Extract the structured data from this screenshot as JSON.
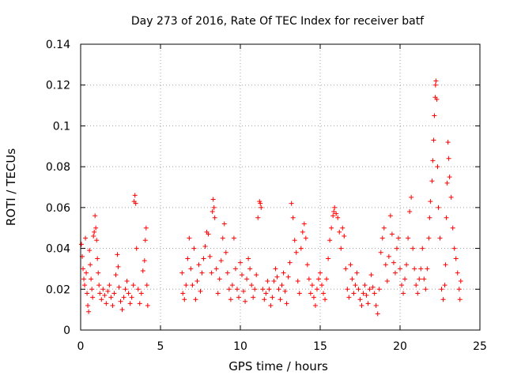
{
  "chart_data": {
    "type": "scatter",
    "title": "Day 273 of 2016, Rate Of TEC Index for receiver batf",
    "xlabel": "GPS time / hours",
    "ylabel": "ROTI / TECUs",
    "xlim": [
      0,
      25
    ],
    "ylim": [
      0,
      0.14
    ],
    "xticks": [
      0,
      5,
      10,
      15,
      20,
      25
    ],
    "xtick_labels": [
      "0",
      "5",
      "10",
      "15",
      "20",
      "25"
    ],
    "yticks": [
      0,
      0.02,
      0.04,
      0.06,
      0.08,
      0.1,
      0.12,
      0.14
    ],
    "ytick_labels": [
      "0",
      "0.02",
      "0.04",
      "0.06",
      "0.08",
      "0.1",
      "0.12",
      "0.14"
    ],
    "grid": true,
    "marker": "+",
    "color": "#ff0000",
    "series": [
      {
        "name": "ROTI",
        "points": [
          [
            0.05,
            0.042
          ],
          [
            0.1,
            0.036
          ],
          [
            0.15,
            0.03
          ],
          [
            0.2,
            0.025
          ],
          [
            0.25,
            0.022
          ],
          [
            0.3,
            0.045
          ],
          [
            0.35,
            0.028
          ],
          [
            0.4,
            0.018
          ],
          [
            0.45,
            0.012
          ],
          [
            0.5,
            0.009
          ],
          [
            0.55,
            0.039
          ],
          [
            0.6,
            0.032
          ],
          [
            0.65,
            0.025
          ],
          [
            0.7,
            0.02
          ],
          [
            0.75,
            0.016
          ],
          [
            0.8,
            0.046
          ],
          [
            0.85,
            0.048
          ],
          [
            0.9,
            0.056
          ],
          [
            0.95,
            0.05
          ],
          [
            1.0,
            0.044
          ],
          [
            1.05,
            0.035
          ],
          [
            1.1,
            0.028
          ],
          [
            1.15,
            0.022
          ],
          [
            1.2,
            0.018
          ],
          [
            1.3,
            0.015
          ],
          [
            1.4,
            0.02
          ],
          [
            1.5,
            0.017
          ],
          [
            1.6,
            0.013
          ],
          [
            1.7,
            0.019
          ],
          [
            1.8,
            0.022
          ],
          [
            1.9,
            0.016
          ],
          [
            2.0,
            0.012
          ],
          [
            2.1,
            0.018
          ],
          [
            2.2,
            0.027
          ],
          [
            2.3,
            0.037
          ],
          [
            2.35,
            0.031
          ],
          [
            2.4,
            0.021
          ],
          [
            2.5,
            0.014
          ],
          [
            2.6,
            0.01
          ],
          [
            2.7,
            0.016
          ],
          [
            2.8,
            0.02
          ],
          [
            2.9,
            0.024
          ],
          [
            3.0,
            0.018
          ],
          [
            3.1,
            0.013
          ],
          [
            3.2,
            0.016
          ],
          [
            3.3,
            0.022
          ],
          [
            3.35,
            0.063
          ],
          [
            3.4,
            0.066
          ],
          [
            3.45,
            0.062
          ],
          [
            3.5,
            0.04
          ],
          [
            3.6,
            0.02
          ],
          [
            3.7,
            0.013
          ],
          [
            3.8,
            0.018
          ],
          [
            3.9,
            0.029
          ],
          [
            4.0,
            0.034
          ],
          [
            4.05,
            0.044
          ],
          [
            4.1,
            0.05
          ],
          [
            4.15,
            0.022
          ],
          [
            4.2,
            0.012
          ],
          [
            6.35,
            0.028
          ],
          [
            6.4,
            0.018
          ],
          [
            6.5,
            0.015
          ],
          [
            6.6,
            0.022
          ],
          [
            6.7,
            0.035
          ],
          [
            6.8,
            0.045
          ],
          [
            6.9,
            0.03
          ],
          [
            7.0,
            0.022
          ],
          [
            7.1,
            0.04
          ],
          [
            7.2,
            0.015
          ],
          [
            7.3,
            0.024
          ],
          [
            7.4,
            0.032
          ],
          [
            7.5,
            0.019
          ],
          [
            7.6,
            0.028
          ],
          [
            7.7,
            0.035
          ],
          [
            7.8,
            0.041
          ],
          [
            7.9,
            0.048
          ],
          [
            8.0,
            0.047
          ],
          [
            8.1,
            0.036
          ],
          [
            8.2,
            0.028
          ],
          [
            8.25,
            0.058
          ],
          [
            8.3,
            0.064
          ],
          [
            8.35,
            0.06
          ],
          [
            8.4,
            0.055
          ],
          [
            8.5,
            0.03
          ],
          [
            8.6,
            0.018
          ],
          [
            8.7,
            0.025
          ],
          [
            8.8,
            0.034
          ],
          [
            8.9,
            0.045
          ],
          [
            9.0,
            0.052
          ],
          [
            9.1,
            0.038
          ],
          [
            9.2,
            0.028
          ],
          [
            9.3,
            0.02
          ],
          [
            9.4,
            0.015
          ],
          [
            9.5,
            0.022
          ],
          [
            9.6,
            0.045
          ],
          [
            9.7,
            0.03
          ],
          [
            9.8,
            0.02
          ],
          [
            9.9,
            0.016
          ],
          [
            10.0,
            0.033
          ],
          [
            10.1,
            0.027
          ],
          [
            10.2,
            0.019
          ],
          [
            10.3,
            0.014
          ],
          [
            10.4,
            0.025
          ],
          [
            10.5,
            0.035
          ],
          [
            10.6,
            0.03
          ],
          [
            10.7,
            0.022
          ],
          [
            10.8,
            0.016
          ],
          [
            10.9,
            0.02
          ],
          [
            11.0,
            0.027
          ],
          [
            11.1,
            0.055
          ],
          [
            11.2,
            0.063
          ],
          [
            11.25,
            0.062
          ],
          [
            11.3,
            0.06
          ],
          [
            11.4,
            0.02
          ],
          [
            11.5,
            0.015
          ],
          [
            11.6,
            0.018
          ],
          [
            11.7,
            0.024
          ],
          [
            11.8,
            0.02
          ],
          [
            11.9,
            0.012
          ],
          [
            12.0,
            0.016
          ],
          [
            12.1,
            0.024
          ],
          [
            12.2,
            0.03
          ],
          [
            12.3,
            0.026
          ],
          [
            12.4,
            0.02
          ],
          [
            12.5,
            0.015
          ],
          [
            12.6,
            0.022
          ],
          [
            12.7,
            0.028
          ],
          [
            12.8,
            0.019
          ],
          [
            12.9,
            0.013
          ],
          [
            13.0,
            0.026
          ],
          [
            13.1,
            0.033
          ],
          [
            13.2,
            0.062
          ],
          [
            13.3,
            0.055
          ],
          [
            13.4,
            0.044
          ],
          [
            13.5,
            0.038
          ],
          [
            13.6,
            0.024
          ],
          [
            13.7,
            0.018
          ],
          [
            13.8,
            0.04
          ],
          [
            13.9,
            0.048
          ],
          [
            14.0,
            0.052
          ],
          [
            14.1,
            0.045
          ],
          [
            14.2,
            0.032
          ],
          [
            14.3,
            0.025
          ],
          [
            14.4,
            0.018
          ],
          [
            14.5,
            0.022
          ],
          [
            14.6,
            0.016
          ],
          [
            14.7,
            0.012
          ],
          [
            14.8,
            0.02
          ],
          [
            14.9,
            0.025
          ],
          [
            15.0,
            0.028
          ],
          [
            15.1,
            0.022
          ],
          [
            15.2,
            0.018
          ],
          [
            15.3,
            0.015
          ],
          [
            15.4,
            0.025
          ],
          [
            15.5,
            0.035
          ],
          [
            15.6,
            0.044
          ],
          [
            15.7,
            0.05
          ],
          [
            15.8,
            0.056
          ],
          [
            15.85,
            0.058
          ],
          [
            15.9,
            0.06
          ],
          [
            16.0,
            0.057
          ],
          [
            16.1,
            0.055
          ],
          [
            16.2,
            0.048
          ],
          [
            16.3,
            0.04
          ],
          [
            16.4,
            0.05
          ],
          [
            16.5,
            0.046
          ],
          [
            16.6,
            0.03
          ],
          [
            16.7,
            0.02
          ],
          [
            16.8,
            0.016
          ],
          [
            16.9,
            0.032
          ],
          [
            17.0,
            0.025
          ],
          [
            17.1,
            0.018
          ],
          [
            17.2,
            0.022
          ],
          [
            17.3,
            0.028
          ],
          [
            17.4,
            0.02
          ],
          [
            17.5,
            0.015
          ],
          [
            17.6,
            0.012
          ],
          [
            17.7,
            0.018
          ],
          [
            17.8,
            0.022
          ],
          [
            17.9,
            0.017
          ],
          [
            18.0,
            0.013
          ],
          [
            18.1,
            0.02
          ],
          [
            18.2,
            0.027
          ],
          [
            18.3,
            0.021
          ],
          [
            18.4,
            0.018
          ],
          [
            18.5,
            0.012
          ],
          [
            18.6,
            0.008
          ],
          [
            18.7,
            0.02
          ],
          [
            18.8,
            0.038
          ],
          [
            18.9,
            0.045
          ],
          [
            19.0,
            0.05
          ],
          [
            19.1,
            0.032
          ],
          [
            19.2,
            0.024
          ],
          [
            19.3,
            0.036
          ],
          [
            19.4,
            0.056
          ],
          [
            19.5,
            0.047
          ],
          [
            19.6,
            0.033
          ],
          [
            19.7,
            0.028
          ],
          [
            19.8,
            0.04
          ],
          [
            19.9,
            0.045
          ],
          [
            20.0,
            0.03
          ],
          [
            20.1,
            0.022
          ],
          [
            20.2,
            0.018
          ],
          [
            20.3,
            0.025
          ],
          [
            20.4,
            0.032
          ],
          [
            20.5,
            0.045
          ],
          [
            20.6,
            0.058
          ],
          [
            20.7,
            0.065
          ],
          [
            20.8,
            0.04
          ],
          [
            20.9,
            0.03
          ],
          [
            21.0,
            0.022
          ],
          [
            21.1,
            0.018
          ],
          [
            21.2,
            0.025
          ],
          [
            21.3,
            0.03
          ],
          [
            21.4,
            0.04
          ],
          [
            21.5,
            0.025
          ],
          [
            21.6,
            0.02
          ],
          [
            21.7,
            0.03
          ],
          [
            21.8,
            0.045
          ],
          [
            21.85,
            0.055
          ],
          [
            21.9,
            0.063
          ],
          [
            22.0,
            0.073
          ],
          [
            22.05,
            0.083
          ],
          [
            22.1,
            0.093
          ],
          [
            22.15,
            0.105
          ],
          [
            22.2,
            0.114
          ],
          [
            22.22,
            0.12
          ],
          [
            22.25,
            0.122
          ],
          [
            22.3,
            0.113
          ],
          [
            22.35,
            0.08
          ],
          [
            22.4,
            0.06
          ],
          [
            22.5,
            0.045
          ],
          [
            22.6,
            0.02
          ],
          [
            22.7,
            0.015
          ],
          [
            22.8,
            0.022
          ],
          [
            22.85,
            0.032
          ],
          [
            22.9,
            0.055
          ],
          [
            22.95,
            0.072
          ],
          [
            23.0,
            0.092
          ],
          [
            23.05,
            0.084
          ],
          [
            23.1,
            0.075
          ],
          [
            23.2,
            0.065
          ],
          [
            23.3,
            0.05
          ],
          [
            23.4,
            0.04
          ],
          [
            23.5,
            0.035
          ],
          [
            23.6,
            0.028
          ],
          [
            23.7,
            0.02
          ],
          [
            23.75,
            0.015
          ],
          [
            23.8,
            0.024
          ]
        ]
      }
    ]
  }
}
